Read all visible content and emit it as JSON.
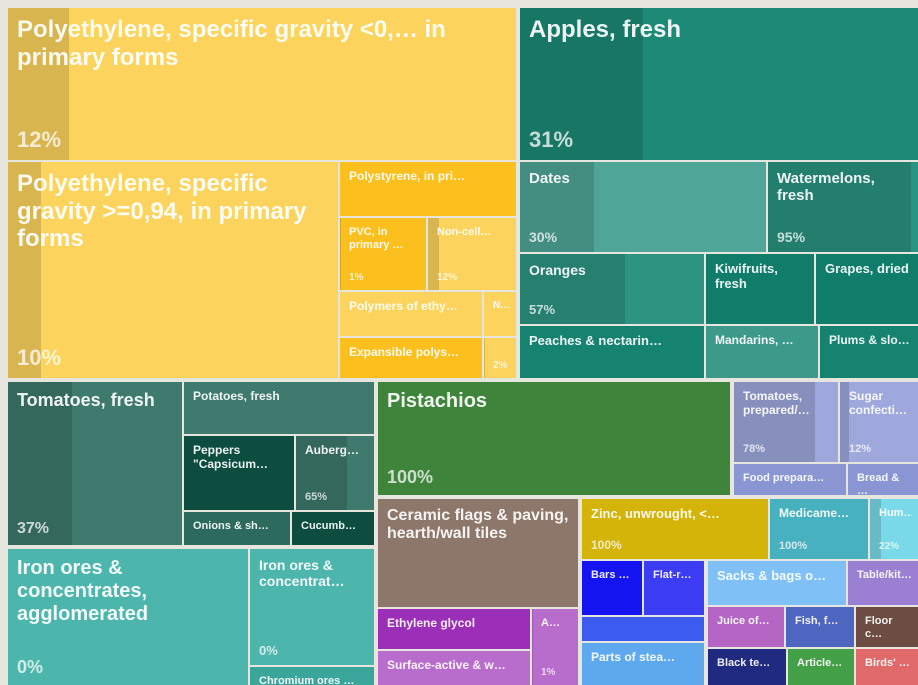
{
  "chart_data": {
    "type": "treemap",
    "tiles": [
      {
        "label": "Polyethylene, specific gravity <0,… in primary forms",
        "value": 12,
        "value_label": "12%",
        "color": "#fcd35c"
      },
      {
        "label": "Polyethylene, specific gravity >=0,94, in primary forms",
        "value": 10,
        "value_label": "10%",
        "color": "#fcd35c"
      },
      {
        "label": "Polystyrene, in pri…",
        "value": null,
        "value_label": null,
        "color": "#fbbf1e"
      },
      {
        "label": "PVC, in primary …",
        "value": 1,
        "value_label": "1%",
        "color": "#fbbf1e"
      },
      {
        "label": "Non-cell…",
        "value": 12,
        "value_label": "12%",
        "color": "#fcd35c"
      },
      {
        "label": "Polymers of ethy…",
        "value": null,
        "value_label": null,
        "color": "#fcd35c"
      },
      {
        "label": "N…",
        "value": null,
        "value_label": null,
        "color": "#fcd35c"
      },
      {
        "label": "Expansible polys…",
        "value": null,
        "value_label": null,
        "color": "#fbbf1e"
      },
      {
        "label": null,
        "value": 2,
        "value_label": "2%",
        "color": "#fcd35c"
      },
      {
        "label": "Apples, fresh",
        "value": 31,
        "value_label": "31%",
        "color": "#1c8a76"
      },
      {
        "label": "Dates",
        "value": 30,
        "value_label": "30%",
        "color": "#4fa597"
      },
      {
        "label": "Watermelons, fresh",
        "value": 95,
        "value_label": "95%",
        "color": "#2a9381"
      },
      {
        "label": "Oranges",
        "value": 57,
        "value_label": "57%",
        "color": "#2d9482"
      },
      {
        "label": "Kiwifruits, fresh",
        "value": null,
        "value_label": null,
        "color": "#0f7d69"
      },
      {
        "label": "Grapes, dried",
        "value": null,
        "value_label": null,
        "color": "#0f7d69"
      },
      {
        "label": "Peaches & nectarin…",
        "value": null,
        "value_label": null,
        "color": "#158370"
      },
      {
        "label": "Mandarins, …",
        "value": null,
        "value_label": null,
        "color": "#3d9a8a"
      },
      {
        "label": "Plums & slo…",
        "value": null,
        "value_label": null,
        "color": "#158370"
      },
      {
        "label": "Tomatoes, fresh",
        "value": 37,
        "value_label": "37%",
        "color": "#3e7a6d"
      },
      {
        "label": "Potatoes, fresh",
        "value": null,
        "value_label": null,
        "color": "#3e7a6d"
      },
      {
        "label": "Peppers \"Capsicum…",
        "value": null,
        "value_label": null,
        "color": "#0c4d40"
      },
      {
        "label": "Auberg…",
        "value": 65,
        "value_label": "65%",
        "color": "#3e7a6d"
      },
      {
        "label": "Onions & sh…",
        "value": null,
        "value_label": null,
        "color": "#2b6a5c"
      },
      {
        "label": "Cucumb…",
        "value": null,
        "value_label": null,
        "color": "#0c4d40"
      },
      {
        "label": "Iron ores & concentrates, agglomerated",
        "value": 0,
        "value_label": "0%",
        "color": "#4db6ac"
      },
      {
        "label": "Iron ores & concentrat…",
        "value": 0,
        "value_label": "0%",
        "color": "#4db6ac"
      },
      {
        "label": "Chromium ores …",
        "value": null,
        "value_label": null,
        "color": "#3aa69b"
      },
      {
        "label": "Pistachios",
        "value": 100,
        "value_label": "100%",
        "color": "#4a9a45"
      },
      {
        "label": "Tomatoes, prepared/…",
        "value": 78,
        "value_label": "78%",
        "color": "#9ea8dc"
      },
      {
        "label": "Sugar confecti…",
        "value": 12,
        "value_label": "12%",
        "color": "#9ea8dc"
      },
      {
        "label": "Food prepara…",
        "value": null,
        "value_label": null,
        "color": "#8a96d4"
      },
      {
        "label": "Bread & …",
        "value": null,
        "value_label": null,
        "color": "#8a96d4"
      },
      {
        "label": "Ceramic flags & paving, hearth/wall tiles",
        "value": null,
        "value_label": null,
        "color": "#8d766a"
      },
      {
        "label": "Ethylene glycol",
        "value": null,
        "value_label": null,
        "color": "#9c2fb8"
      },
      {
        "label": "A…",
        "value": 1,
        "value_label": "1%",
        "color": "#b86ccc"
      },
      {
        "label": "Surface-active & w…",
        "value": null,
        "value_label": null,
        "color": "#b86ccc"
      },
      {
        "label": "Zinc, unwrought, <…",
        "value": 100,
        "value_label": "100%",
        "color": "#f7d20a"
      },
      {
        "label": "Medicame…",
        "value": 100,
        "value_label": "100%",
        "color": "#54cedf"
      },
      {
        "label": "Hum…",
        "value": 22,
        "value_label": "22%",
        "color": "#7ad9e8"
      },
      {
        "label": "Bars …",
        "value": null,
        "value_label": null,
        "color": "#1414f0"
      },
      {
        "label": "Flat-r…",
        "value": null,
        "value_label": null,
        "color": "#3c3cf5"
      },
      {
        "label": null,
        "value": null,
        "value_label": null,
        "color": "#3c5cf0"
      },
      {
        "label": "Parts of stea…",
        "value": null,
        "value_label": null,
        "color": "#5ea8ee"
      },
      {
        "label": "Sacks & bags o…",
        "value": null,
        "value_label": null,
        "color": "#7fc0f6"
      },
      {
        "label": "Table/kit…",
        "value": null,
        "value_label": null,
        "color": "#9a7fd2"
      },
      {
        "label": "Juice of…",
        "value": null,
        "value_label": null,
        "color": "#b565c4"
      },
      {
        "label": "Fish, f…",
        "value": null,
        "value_label": null,
        "color": "#4f66c0"
      },
      {
        "label": "Floor c…",
        "value": null,
        "value_label": null,
        "color": "#6d4c41"
      },
      {
        "label": "Black te…",
        "value": null,
        "value_label": null,
        "color": "#1f2a80"
      },
      {
        "label": "Article…",
        "value": null,
        "value_label": null,
        "color": "#43a047"
      },
      {
        "label": "Birds' …",
        "value": null,
        "value_label": null,
        "color": "#e06a6a"
      }
    ]
  }
}
